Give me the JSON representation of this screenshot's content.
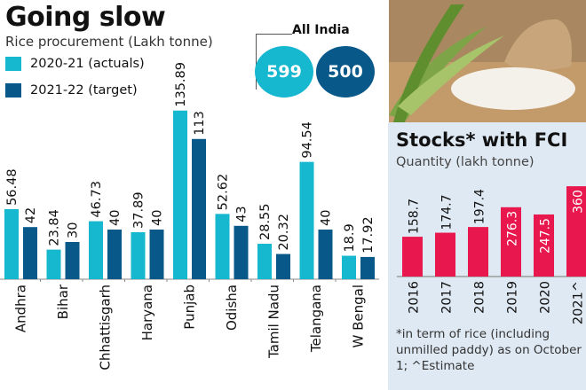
{
  "left": {
    "title": "Going slow",
    "subtitle": "Rice procurement (Lakh tonne)",
    "all_india": {
      "label": "All India",
      "actuals": "599",
      "target": "500"
    }
  },
  "right": {
    "title": "Stocks* with FCI",
    "subtitle": "Quantity (lakh tonne)",
    "note": "*in term of rice (including unmilled paddy) as on October 1; ^Estimate"
  },
  "colors": {
    "actuals": "#16b8cf",
    "target": "#08598a",
    "stocks": "#e8174d",
    "panel_bg": "#dfe9f3"
  },
  "chart_data": [
    {
      "type": "bar",
      "title": "Going slow",
      "subtitle": "Rice procurement (Lakh tonne)",
      "xlabel": "",
      "ylabel": "Lakh tonne",
      "legend_position": "top-left",
      "grid": false,
      "ylim": [
        0,
        140
      ],
      "categories": [
        "Andhra",
        "Bihar",
        "Chhattisgarh",
        "Haryana",
        "Punjab",
        "Odisha",
        "Tamil Nadu",
        "Telangana",
        "W Bengal"
      ],
      "series": [
        {
          "name": "2020-21 (actuals)",
          "values": [
            56.48,
            23.84,
            46.73,
            37.89,
            135.89,
            52.62,
            28.55,
            94.54,
            18.9
          ],
          "labels": [
            "56.48",
            "23.84",
            "46.73",
            "37.89",
            "135.89",
            "52.62",
            "28.55",
            "94.54",
            "18.9"
          ]
        },
        {
          "name": "2021-22 (target)",
          "values": [
            42,
            30,
            40,
            40,
            113,
            43,
            20.32,
            40,
            17.92
          ],
          "labels": [
            "42",
            "30",
            "40",
            "40",
            "113",
            "43",
            "20.32",
            "40",
            "17.92"
          ]
        }
      ]
    },
    {
      "type": "bar",
      "title": "Stocks* with FCI",
      "subtitle": "Quantity (lakh tonne)",
      "xlabel": "",
      "ylabel": "lakh tonne",
      "grid": false,
      "ylim": [
        0,
        370
      ],
      "categories": [
        "2016",
        "2017",
        "2018",
        "2019",
        "2020",
        "2021^"
      ],
      "values": [
        158.7,
        174.7,
        197.4,
        276.3,
        247.5,
        360
      ],
      "labels": [
        "158.7",
        "174.7",
        "197.4",
        "276.3",
        "247.5",
        "360"
      ],
      "annotation": "*in term of rice (including unmilled paddy) as on October 1; ^Estimate"
    }
  ]
}
